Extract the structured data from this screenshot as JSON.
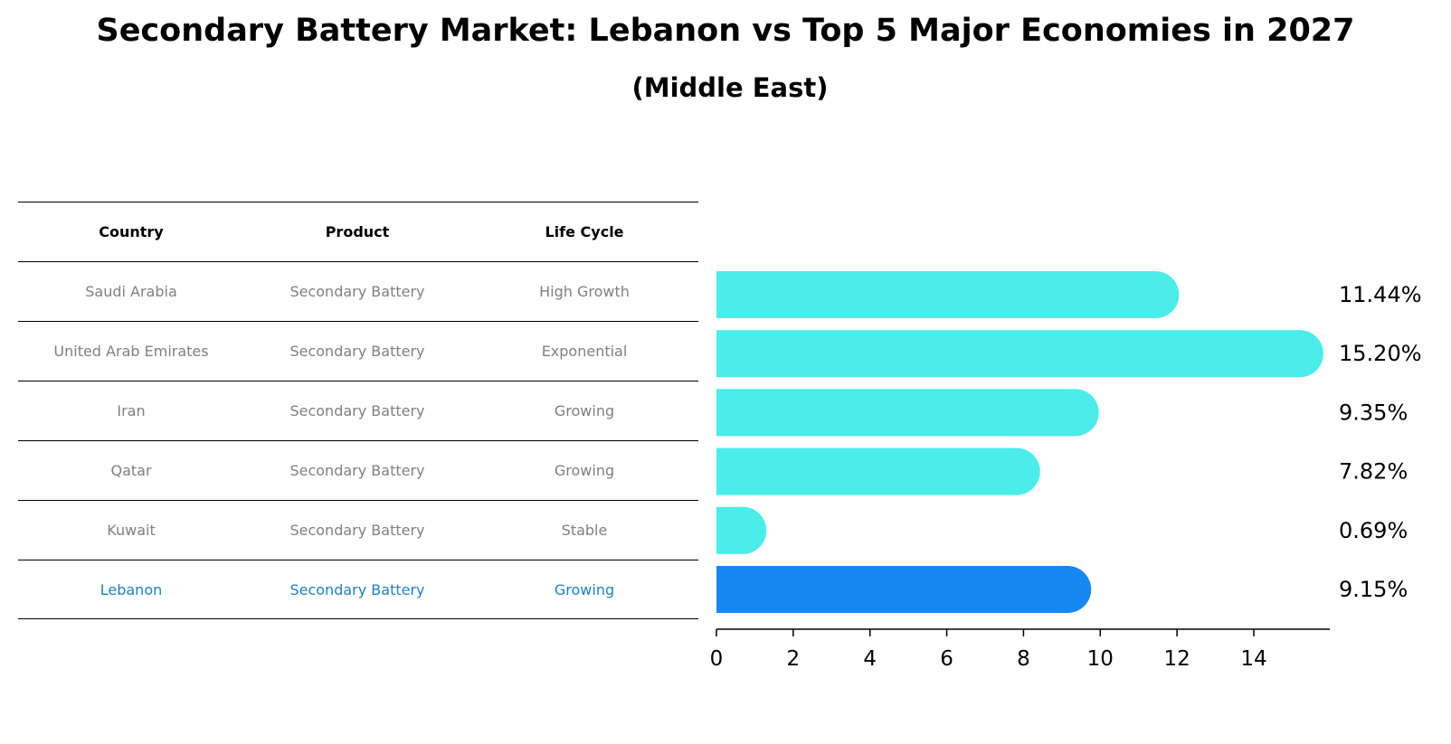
{
  "chart_data": {
    "type": "bar",
    "orientation": "horizontal",
    "title": "Secondary Battery Market: Lebanon vs Top 5 Major Economies in 2027",
    "subtitle": "(Middle East)",
    "categories": [
      "Saudi Arabia",
      "United Arab Emirates",
      "Iran",
      "Qatar",
      "Kuwait",
      "Lebanon"
    ],
    "values": [
      11.44,
      15.2,
      9.35,
      7.82,
      0.69,
      9.15
    ],
    "value_labels": [
      "11.44%",
      "15.20%",
      "9.35%",
      "7.82%",
      "0.69%",
      "9.15%"
    ],
    "highlight_category": "Lebanon",
    "xlim": [
      0,
      16
    ],
    "xticks": [
      0,
      2,
      4,
      6,
      8,
      10,
      12,
      14
    ],
    "xlabel": "",
    "ylabel": "",
    "colors": {
      "default": "#4aedea",
      "highlight": "#1787f2"
    }
  },
  "table": {
    "headers": [
      "Country",
      "Product",
      "Life Cycle"
    ],
    "rows": [
      [
        "Saudi Arabia",
        "Secondary Battery",
        "High Growth"
      ],
      [
        "United Arab Emirates",
        "Secondary Battery",
        "Exponential"
      ],
      [
        "Iran",
        "Secondary Battery",
        "Growing"
      ],
      [
        "Qatar",
        "Secondary Battery",
        "Growing"
      ],
      [
        "Kuwait",
        "Secondary Battery",
        "Stable"
      ],
      [
        "Lebanon",
        "Secondary Battery",
        "Growing"
      ]
    ],
    "colors": {
      "text": "#808080",
      "header": "#000000",
      "highlight": "#1f80c8"
    }
  }
}
